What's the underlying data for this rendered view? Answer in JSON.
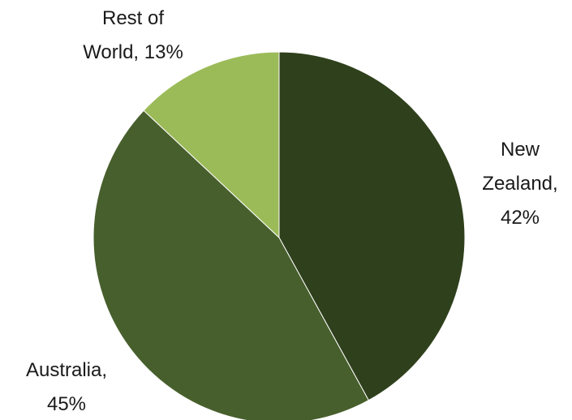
{
  "chart_data": {
    "type": "pie",
    "title": "",
    "slices": [
      {
        "label": "New Zealand",
        "value": 42,
        "label_lines": [
          "New",
          "Zealand,",
          "42%"
        ],
        "color": "#2f401c"
      },
      {
        "label": "Australia",
        "value": 45,
        "label_lines": [
          "Australia,",
          "45%"
        ],
        "color": "#475f2c"
      },
      {
        "label": "Rest of World",
        "value": 13,
        "label_lines": [
          "Rest of",
          "World, 13%"
        ],
        "color": "#9bbb59"
      }
    ],
    "start_angle": "12 o'clock",
    "direction": "clockwise",
    "legend": "none",
    "data_labels": "outside"
  }
}
